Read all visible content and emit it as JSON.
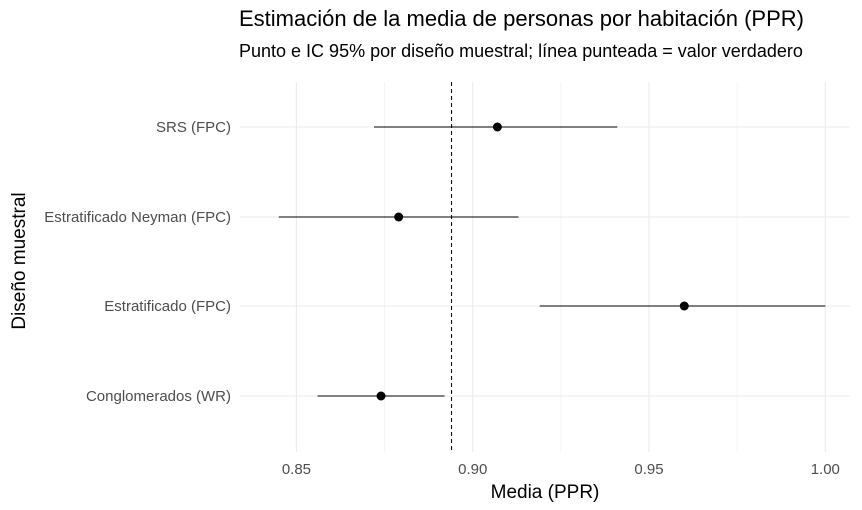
{
  "chart_data": {
    "type": "scatter",
    "title": "Estimación de la media de personas por habitación (PPR)",
    "subtitle": "Punto e IC 95% por diseño muestral; línea punteada = valor verdadero",
    "xlabel": "Media (PPR)",
    "ylabel": "Diseño muestral",
    "xlim": [
      0.834,
      1.007
    ],
    "x_ticks": [
      0.85,
      0.9,
      0.95,
      1.0
    ],
    "x_tick_labels": [
      "0.85",
      "0.90",
      "0.95",
      "1.00"
    ],
    "reference_line": {
      "x": 0.894,
      "style": "dashed"
    },
    "grid": true,
    "categories": [
      "SRS (FPC)",
      "Estratificado Neyman (FPC)",
      "Estratificado (FPC)",
      "Conglomerados (WR)"
    ],
    "points": [
      {
        "label": "SRS (FPC)",
        "estimate": 0.907,
        "ci_low": 0.872,
        "ci_high": 0.941
      },
      {
        "label": "Estratificado Neyman (FPC)",
        "estimate": 0.879,
        "ci_low": 0.845,
        "ci_high": 0.913
      },
      {
        "label": "Estratificado (FPC)",
        "estimate": 0.96,
        "ci_low": 0.919,
        "ci_high": 1.0
      },
      {
        "label": "Conglomerados (WR)",
        "estimate": 0.874,
        "ci_low": 0.856,
        "ci_high": 0.892
      }
    ]
  }
}
